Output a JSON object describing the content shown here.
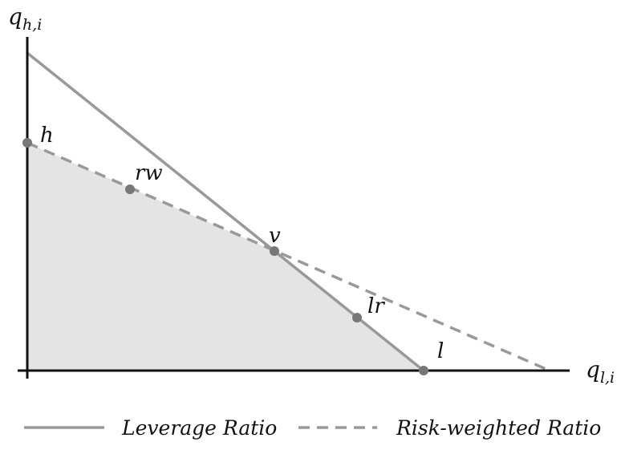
{
  "axes": {
    "y_label": "q_{h,i}",
    "y_label_main": "q",
    "y_label_sub": "h,i",
    "x_label": "q_{l,i}",
    "x_label_main": "q",
    "x_label_sub": "l,i"
  },
  "points": [
    {
      "id": "h",
      "label": "h"
    },
    {
      "id": "rw",
      "label": "rw"
    },
    {
      "id": "v",
      "label": "v"
    },
    {
      "id": "lr",
      "label": "lr"
    },
    {
      "id": "l",
      "label": "l"
    }
  ],
  "legend": {
    "leverage_label": "Leverage Ratio",
    "risk_label": "Risk-weighted Ratio"
  },
  "colors": {
    "axis": "#111111",
    "constraint_line": "#999999",
    "point": "#777777",
    "feasible_fill": "#e4e4e4"
  }
}
